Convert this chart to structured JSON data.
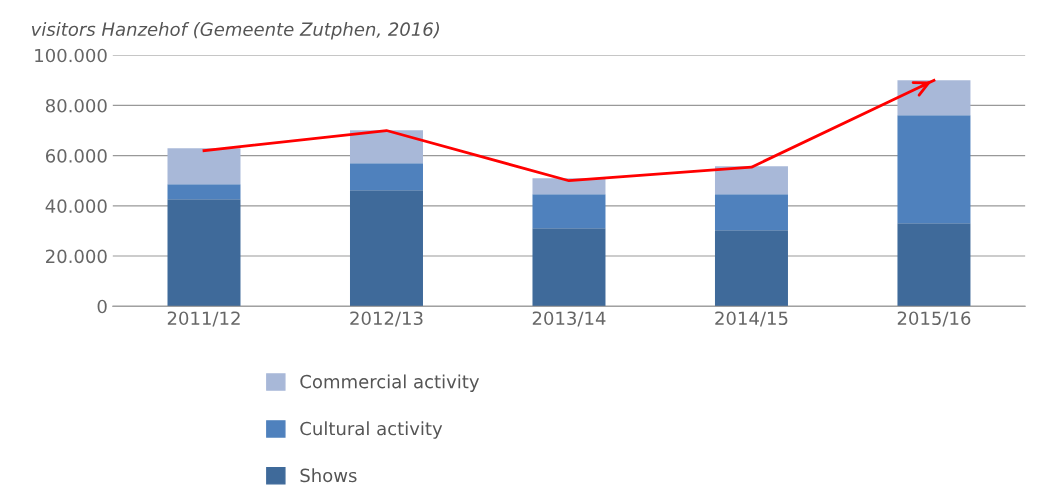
{
  "chart_data": {
    "type": "bar",
    "title": "visitors Hanzehof (Gemeente Zutphen, 2016)",
    "categories": [
      "2011/12",
      "2012/13",
      "2013/14",
      "2014/15",
      "2015/16"
    ],
    "stacked": true,
    "series": [
      {
        "name": "Shows",
        "color": "#3f6a9a",
        "values": [
          42600,
          46200,
          31100,
          30300,
          33100
        ]
      },
      {
        "name": "Cultural activity",
        "color": "#4f81bd",
        "values": [
          6000,
          10800,
          13500,
          14300,
          43000
        ]
      },
      {
        "name": "Commercial activity",
        "color": "#a8b8d8",
        "values": [
          14300,
          13100,
          6400,
          11200,
          13900
        ]
      },
      {
        "type": "line",
        "color": "#ff0000",
        "values": [
          62000,
          70000,
          50000,
          55400,
          90000
        ]
      }
    ],
    "ylim": [
      0,
      100000
    ],
    "yticks": [
      {
        "value": 0,
        "label": "0"
      },
      {
        "value": 20000,
        "label": "20.000"
      },
      {
        "value": 40000,
        "label": "40.000"
      },
      {
        "value": 60000,
        "label": "60.000"
      },
      {
        "value": 80000,
        "label": "80.000"
      },
      {
        "value": 100000,
        "label": "100.000"
      }
    ],
    "grid": "y",
    "legend": "bottom"
  }
}
